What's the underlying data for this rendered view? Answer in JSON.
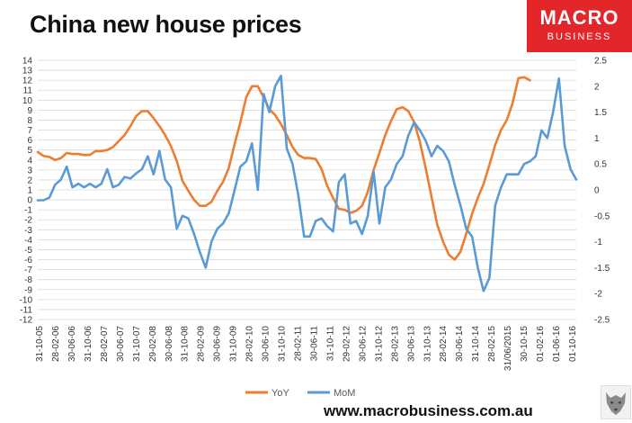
{
  "title": "China new house prices",
  "logo": {
    "line1": "MACRO",
    "line2": "BUSINESS"
  },
  "footer": {
    "url": "www.macrobusiness.com.au"
  },
  "colors": {
    "yoy": "#ed7d31",
    "mom": "#5b9bd5",
    "logo_bg": "#e3262a",
    "grid": "#d9d9d9"
  },
  "chart_data": {
    "type": "line",
    "title": "China new house prices",
    "x_tick_labels": [
      "31-10-05",
      "28-02-06",
      "30-06-06",
      "31-10-06",
      "28-02-07",
      "30-06-07",
      "31-10-07",
      "29-02-08",
      "30-06-08",
      "31-10-08",
      "28-02-09",
      "30-06-09",
      "31-10-09",
      "28-02-10",
      "30-06-10",
      "31-10-10",
      "28-02-11",
      "30-06-11",
      "31-10-11",
      "29-02-12",
      "30-06-12",
      "31-10-12",
      "28-02-13",
      "30-06-13",
      "31-10-13",
      "28-02-14",
      "30-06-14",
      "31-10-14",
      "28-02-15",
      "31/06/2015",
      "30-10-15",
      "01-02-16",
      "01-06-16",
      "01-10-16"
    ],
    "y_left": {
      "min": -12,
      "max": 14,
      "step": 1
    },
    "y_right": {
      "min": -2.5,
      "max": 2.5,
      "step": 0.5
    },
    "grid": true,
    "legend_position": "bottom",
    "series": [
      {
        "name": "YoY",
        "axis": "left",
        "color": "#ed7d31",
        "points": [
          [
            0,
            4.8
          ],
          [
            1,
            4.4
          ],
          [
            2,
            4.3
          ],
          [
            3,
            4.0
          ],
          [
            4,
            4.2
          ],
          [
            5,
            4.7
          ],
          [
            6,
            4.6
          ],
          [
            7,
            4.6
          ],
          [
            8,
            4.5
          ],
          [
            9,
            4.5
          ],
          [
            10,
            4.9
          ],
          [
            11,
            4.9
          ],
          [
            12,
            5.0
          ],
          [
            13,
            5.3
          ],
          [
            14,
            5.9
          ],
          [
            15,
            6.5
          ],
          [
            16,
            7.4
          ],
          [
            17,
            8.4
          ],
          [
            18,
            8.9
          ],
          [
            19,
            8.9
          ],
          [
            20,
            8.2
          ],
          [
            21,
            7.4
          ],
          [
            22,
            6.5
          ],
          [
            23,
            5.4
          ],
          [
            24,
            3.9
          ],
          [
            25,
            1.9
          ],
          [
            26,
            0.9
          ],
          [
            27,
            0.0
          ],
          [
            28,
            -0.6
          ],
          [
            29,
            -0.6
          ],
          [
            30,
            -0.2
          ],
          [
            31,
            0.9
          ],
          [
            32,
            1.8
          ],
          [
            33,
            3.2
          ],
          [
            34,
            5.6
          ],
          [
            35,
            7.8
          ],
          [
            36,
            10.3
          ],
          [
            37,
            11.4
          ],
          [
            38,
            11.4
          ],
          [
            39,
            10.3
          ],
          [
            40,
            9.1
          ],
          [
            41,
            8.5
          ],
          [
            42,
            7.6
          ],
          [
            43,
            6.5
          ],
          [
            44,
            5.3
          ],
          [
            45,
            4.5
          ],
          [
            46,
            4.2
          ],
          [
            47,
            4.2
          ],
          [
            48,
            4.1
          ],
          [
            49,
            3.1
          ],
          [
            50,
            1.4
          ],
          [
            51,
            0.2
          ],
          [
            52,
            -0.9
          ],
          [
            53,
            -1.0
          ],
          [
            54,
            -1.3
          ],
          [
            55,
            -1.1
          ],
          [
            56,
            -0.6
          ],
          [
            57,
            0.8
          ],
          [
            58,
            3.0
          ],
          [
            59,
            4.7
          ],
          [
            60,
            6.5
          ],
          [
            61,
            7.9
          ],
          [
            62,
            9.1
          ],
          [
            63,
            9.3
          ],
          [
            64,
            8.9
          ],
          [
            65,
            7.8
          ],
          [
            66,
            5.8
          ],
          [
            67,
            3.2
          ],
          [
            68,
            0.3
          ],
          [
            69,
            -2.5
          ],
          [
            70,
            -4.2
          ],
          [
            71,
            -5.5
          ],
          [
            72,
            -6.0
          ],
          [
            73,
            -5.2
          ],
          [
            74,
            -3.4
          ],
          [
            75,
            -1.4
          ],
          [
            76,
            0.2
          ],
          [
            77,
            1.6
          ],
          [
            78,
            3.5
          ],
          [
            79,
            5.5
          ],
          [
            80,
            7.0
          ],
          [
            81,
            8.0
          ],
          [
            82,
            9.7
          ],
          [
            83,
            12.2
          ],
          [
            84,
            12.3
          ],
          [
            85,
            12.0
          ]
        ]
      },
      {
        "name": "MoM",
        "axis": "right",
        "color": "#5b9bd5",
        "points": [
          [
            0,
            -0.2
          ],
          [
            1,
            -0.2
          ],
          [
            2,
            -0.15
          ],
          [
            3,
            0.1
          ],
          [
            4,
            0.2
          ],
          [
            5,
            0.45
          ],
          [
            6,
            0.05
          ],
          [
            7,
            0.12
          ],
          [
            8,
            0.05
          ],
          [
            9,
            0.12
          ],
          [
            10,
            0.05
          ],
          [
            11,
            0.12
          ],
          [
            12,
            0.4
          ],
          [
            13,
            0.05
          ],
          [
            14,
            0.1
          ],
          [
            15,
            0.25
          ],
          [
            16,
            0.22
          ],
          [
            17,
            0.32
          ],
          [
            18,
            0.4
          ],
          [
            19,
            0.65
          ],
          [
            20,
            0.3
          ],
          [
            21,
            0.75
          ],
          [
            22,
            0.2
          ],
          [
            23,
            0.05
          ],
          [
            24,
            -0.75
          ],
          [
            25,
            -0.5
          ],
          [
            26,
            -0.55
          ],
          [
            27,
            -0.85
          ],
          [
            28,
            -1.2
          ],
          [
            29,
            -1.5
          ],
          [
            30,
            -1.0
          ],
          [
            31,
            -0.75
          ],
          [
            32,
            -0.65
          ],
          [
            33,
            -0.45
          ],
          [
            34,
            0.0
          ],
          [
            35,
            0.45
          ],
          [
            36,
            0.55
          ],
          [
            37,
            0.9
          ],
          [
            38,
            0.0
          ],
          [
            39,
            1.85
          ],
          [
            40,
            1.5
          ],
          [
            41,
            2.0
          ],
          [
            42,
            2.2
          ],
          [
            43,
            0.8
          ],
          [
            44,
            0.5
          ],
          [
            45,
            -0.1
          ],
          [
            46,
            -0.9
          ],
          [
            47,
            -0.9
          ],
          [
            48,
            -0.6
          ],
          [
            49,
            -0.55
          ],
          [
            50,
            -0.7
          ],
          [
            51,
            -0.8
          ],
          [
            52,
            0.15
          ],
          [
            53,
            0.3
          ],
          [
            54,
            -0.65
          ],
          [
            55,
            -0.6
          ],
          [
            56,
            -0.85
          ],
          [
            57,
            -0.5
          ],
          [
            58,
            0.35
          ],
          [
            59,
            -0.65
          ],
          [
            60,
            0.05
          ],
          [
            61,
            0.2
          ],
          [
            62,
            0.5
          ],
          [
            63,
            0.65
          ],
          [
            64,
            1.05
          ],
          [
            65,
            1.3
          ],
          [
            66,
            1.15
          ],
          [
            67,
            0.95
          ],
          [
            68,
            0.65
          ],
          [
            69,
            0.85
          ],
          [
            70,
            0.75
          ],
          [
            71,
            0.55
          ],
          [
            72,
            0.1
          ],
          [
            73,
            -0.3
          ],
          [
            74,
            -0.75
          ],
          [
            75,
            -0.9
          ],
          [
            76,
            -1.5
          ],
          [
            77,
            -1.95
          ],
          [
            78,
            -1.7
          ],
          [
            79,
            -0.3
          ],
          [
            80,
            0.05
          ],
          [
            81,
            0.3
          ],
          [
            82,
            0.3
          ],
          [
            83,
            0.3
          ],
          [
            84,
            0.5
          ],
          [
            85,
            0.55
          ],
          [
            86,
            0.65
          ],
          [
            87,
            1.15
          ],
          [
            88,
            1.0
          ],
          [
            89,
            1.5
          ],
          [
            90,
            2.15
          ],
          [
            91,
            0.85
          ],
          [
            92,
            0.4
          ],
          [
            93,
            0.2
          ]
        ]
      }
    ]
  }
}
